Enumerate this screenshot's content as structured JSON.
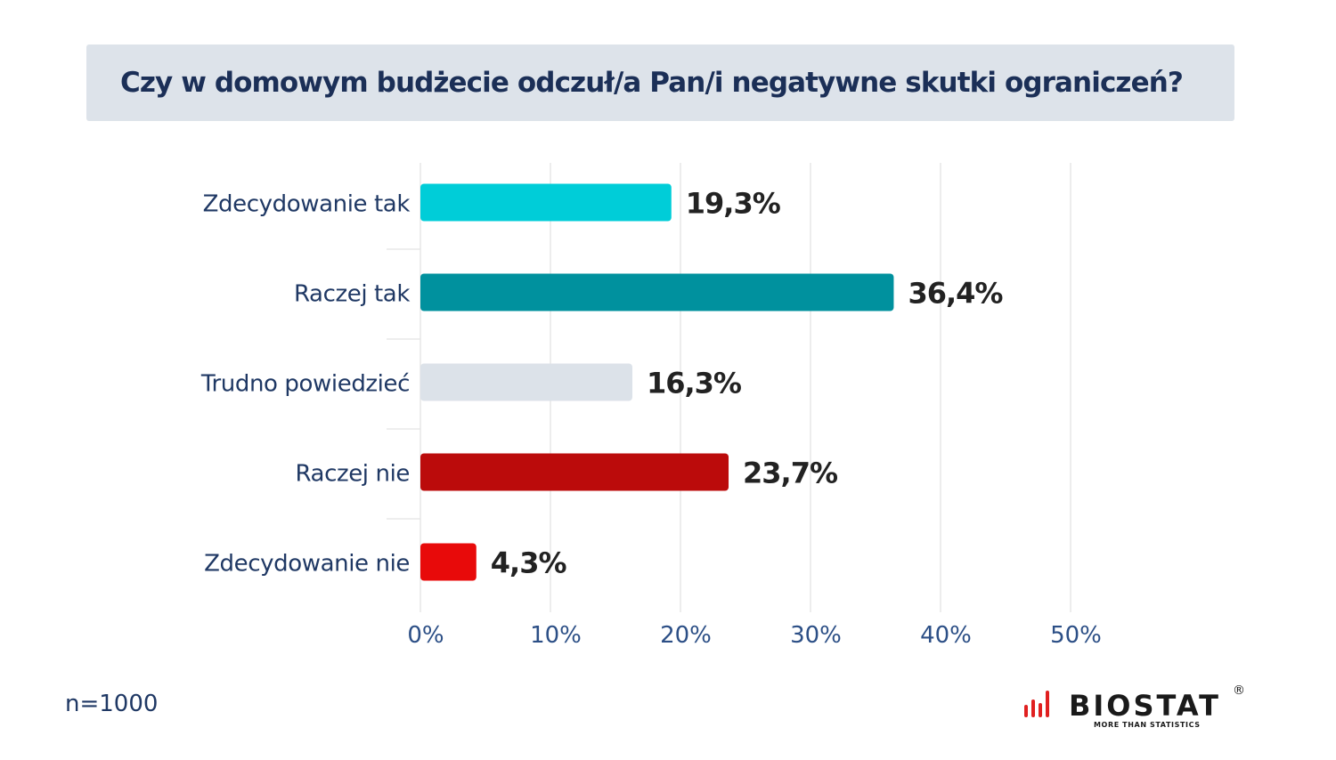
{
  "title": "Czy w domowym budżecie odczuł/a Pan/i negatywne skutki ograniczeń?",
  "sample_note": "n=1000",
  "logo": {
    "word": "BIOSTAT",
    "registered": "®",
    "tagline": "MORE THAN STATISTICS",
    "bar_color": "#e02020"
  },
  "chart_data": {
    "type": "bar",
    "orientation": "horizontal",
    "title": "Czy w domowym budżecie odczuł/a Pan/i negatywne skutki ograniczeń?",
    "categories": [
      "Zdecydowanie tak",
      "Raczej tak",
      "Trudno powiedzieć",
      "Raczej nie",
      "Zdecydowanie nie"
    ],
    "values": [
      19.3,
      36.4,
      16.3,
      23.7,
      4.3
    ],
    "value_labels": [
      "19,3%",
      "36,4%",
      "16,3%",
      "23,7%",
      "4,3%"
    ],
    "colors": [
      "#00cdd8",
      "#00919e",
      "#dce2e9",
      "#bb0b0b",
      "#e80a0a"
    ],
    "xlim": [
      0,
      50
    ],
    "xticks": [
      0,
      10,
      20,
      30,
      40,
      50
    ],
    "xtick_labels": [
      "0%",
      "10%",
      "20%",
      "30%",
      "40%",
      "50%"
    ],
    "grid": true,
    "xlabel": "",
    "ylabel": ""
  }
}
